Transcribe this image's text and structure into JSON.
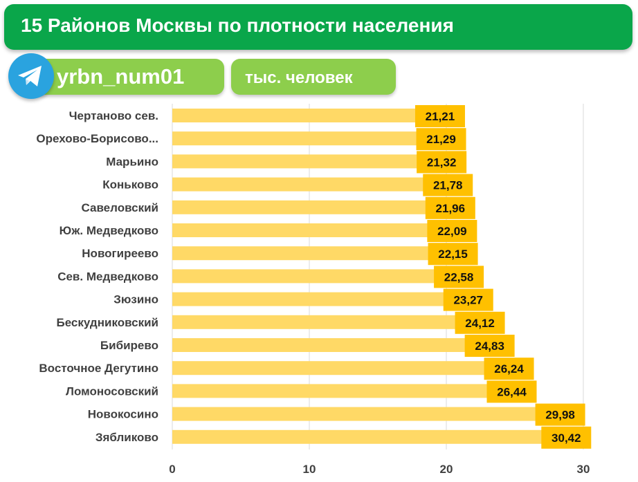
{
  "header": {
    "title": "15 Районов Москвы по плотности населения",
    "username": "yrbn_num01",
    "unit": "тыс. человек",
    "logo_icon": "telegram-icon"
  },
  "colors": {
    "title_bg": "#0aa64a",
    "badge_bg": "#8dce4c",
    "telegram": "#2aa3df",
    "bar": "#ffd966",
    "label_bg": "#ffc000",
    "grid": "#d9d9d9"
  },
  "chart_data": {
    "type": "bar",
    "orientation": "horizontal",
    "title": "15 Районов Москвы по плотности населения",
    "unit": "тыс. человек",
    "categories": [
      "Чертаново сев.",
      "Орехово-Борисово...",
      "Марьино",
      "Коньково",
      "Савеловский",
      "Юж. Медведково",
      "Новогиреево",
      "Сев. Медведково",
      "Зюзино",
      "Бескудниковский",
      "Бибирево",
      "Восточное Дегутино",
      "Ломоносовский",
      "Новокосино",
      "Зябликово"
    ],
    "values": [
      21.21,
      21.29,
      21.32,
      21.78,
      21.96,
      22.09,
      22.15,
      22.58,
      23.27,
      24.12,
      24.83,
      26.24,
      26.44,
      29.98,
      30.42
    ],
    "value_labels": [
      "21,21",
      "21,29",
      "21,32",
      "21,78",
      "21,96",
      "22,09",
      "22,15",
      "22,58",
      "23,27",
      "24,12",
      "24,83",
      "26,24",
      "26,44",
      "29,98",
      "30,42"
    ],
    "x_ticks": [
      0,
      10,
      20,
      30
    ],
    "xlim": [
      0,
      32
    ],
    "grid": true,
    "legend": "none"
  }
}
